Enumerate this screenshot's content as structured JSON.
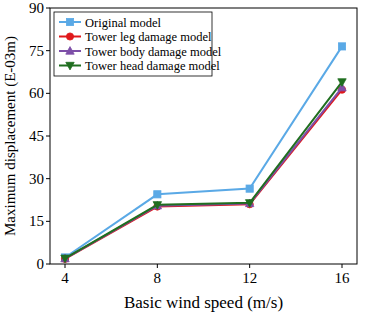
{
  "chart_data": {
    "type": "line",
    "x_label": "Basic wind speed (m/s)",
    "y_label": "Maximum displacement (E-03m)",
    "categories": [
      "4",
      "8",
      "12",
      "16"
    ],
    "series": [
      {
        "name": "Original model",
        "color": "#5aa9e6",
        "marker": "square",
        "values": [
          2.3,
          24.5,
          26.5,
          76.5
        ]
      },
      {
        "name": "Tower leg damage model",
        "color": "#e0181b",
        "marker": "circle",
        "values": [
          1.8,
          20.2,
          21.0,
          61.3
        ]
      },
      {
        "name": "Tower body damage model",
        "color": "#7d4fa8",
        "marker": "triangle",
        "values": [
          1.9,
          20.5,
          21.3,
          62.0
        ]
      },
      {
        "name": "Tower head damage model",
        "color": "#1f6e1f",
        "marker": "triangle-down",
        "values": [
          2.0,
          20.8,
          21.5,
          64.0
        ]
      }
    ],
    "ylim": [
      0,
      90
    ],
    "yticks": [
      0,
      15,
      30,
      45,
      60,
      75,
      90
    ],
    "legend": "upper-left",
    "grid": false
  }
}
